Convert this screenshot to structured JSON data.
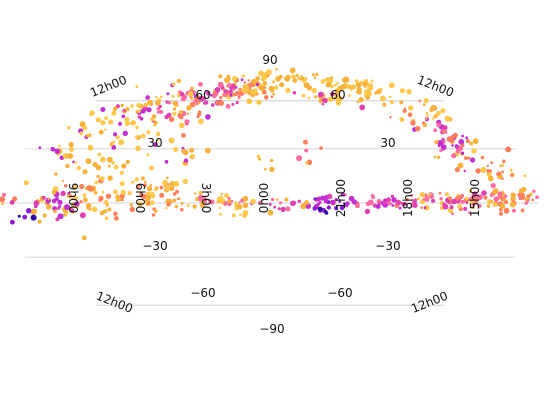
{
  "chart_data": {
    "type": "scatter",
    "projection": "mollweide-sky-map",
    "title": "",
    "grid": true,
    "colors": [
      "#ffc84a",
      "#f8b23a",
      "#ff7f5a",
      "#ff6aa0",
      "#e040b0",
      "#c22ecf",
      "#8a18d8",
      "#2b0aa8"
    ],
    "lat_ticks": [
      {
        "value": 90,
        "label": "90"
      },
      {
        "value": 60,
        "label": "60"
      },
      {
        "value": 30,
        "label": "30"
      },
      {
        "value": -30,
        "label": "−30"
      },
      {
        "value": -60,
        "label": "−60"
      },
      {
        "value": -90,
        "label": "−90"
      }
    ],
    "lon_ticks": [
      "9h00",
      "6h00",
      "3h00",
      "0h00",
      "21h00",
      "18h00",
      "15h00",
      "12h00"
    ],
    "clusters": [
      {
        "lon": 160,
        "lat": 2,
        "n": 60,
        "slon": 14,
        "slat": 3,
        "c": [
          1,
          2,
          3
        ]
      },
      {
        "lon": 120,
        "lat": 1,
        "n": 60,
        "slon": 16,
        "slat": 3,
        "c": [
          2,
          3,
          4,
          0
        ]
      },
      {
        "lon": 80,
        "lat": 0,
        "n": 40,
        "slon": 14,
        "slat": 2,
        "c": [
          3,
          4,
          5
        ]
      },
      {
        "lon": 40,
        "lat": 0,
        "n": 25,
        "slon": 10,
        "slat": 2,
        "c": [
          4,
          5,
          6
        ]
      },
      {
        "lon": 5,
        "lat": 0,
        "n": 20,
        "slon": 12,
        "slat": 2,
        "c": [
          1,
          3,
          4
        ]
      },
      {
        "lon": -40,
        "lat": 1,
        "n": 30,
        "slon": 12,
        "slat": 2,
        "c": [
          0,
          1,
          3
        ]
      },
      {
        "lon": -80,
        "lat": 4,
        "n": 55,
        "slon": 14,
        "slat": 5,
        "c": [
          0,
          1,
          2
        ]
      },
      {
        "lon": -120,
        "lat": 5,
        "n": 60,
        "slon": 16,
        "slat": 6,
        "c": [
          0,
          1,
          2
        ]
      },
      {
        "lon": -150,
        "lat": 0,
        "n": 35,
        "slon": 10,
        "slat": 4,
        "c": [
          1,
          4,
          5
        ]
      },
      {
        "lon": 155,
        "lat": 18,
        "n": 30,
        "slon": 12,
        "slat": 8,
        "c": [
          0,
          1,
          2
        ]
      },
      {
        "lon": 135,
        "lat": 35,
        "n": 45,
        "slon": 12,
        "slat": 6,
        "c": [
          1,
          2,
          3,
          4,
          5
        ]
      },
      {
        "lon": 140,
        "lat": 55,
        "n": 30,
        "slon": 14,
        "slat": 5,
        "c": [
          0,
          1,
          2
        ]
      },
      {
        "lon": 110,
        "lat": 70,
        "n": 60,
        "slon": 30,
        "slat": 5,
        "c": [
          0,
          1
        ]
      },
      {
        "lon": 60,
        "lat": 62,
        "n": 25,
        "slon": 14,
        "slat": 3,
        "c": [
          0,
          1,
          4
        ]
      },
      {
        "lon": -25,
        "lat": 68,
        "n": 45,
        "slon": 16,
        "slat": 4,
        "c": [
          0,
          1,
          2
        ]
      },
      {
        "lon": -60,
        "lat": 63,
        "n": 70,
        "slon": 16,
        "slat": 8,
        "c": [
          2,
          3,
          4,
          5
        ]
      },
      {
        "lon": -95,
        "lat": 55,
        "n": 50,
        "slon": 14,
        "slat": 8,
        "c": [
          0,
          1,
          3,
          4
        ]
      },
      {
        "lon": -130,
        "lat": 50,
        "n": 40,
        "slon": 14,
        "slat": 8,
        "c": [
          0,
          1,
          5
        ]
      },
      {
        "lon": -115,
        "lat": 25,
        "n": 25,
        "slon": 12,
        "slat": 8,
        "c": [
          0,
          1
        ]
      },
      {
        "lon": -70,
        "lat": 28,
        "n": 15,
        "slon": 14,
        "slat": 6,
        "c": [
          0,
          1,
          5
        ]
      },
      {
        "lon": -145,
        "lat": 30,
        "n": 25,
        "slon": 10,
        "slat": 10,
        "c": [
          0,
          1,
          5
        ]
      },
      {
        "lon": 10,
        "lat": 78,
        "n": 35,
        "slon": 60,
        "slat": 4,
        "c": [
          0,
          1
        ]
      },
      {
        "lon": 30,
        "lat": 25,
        "n": 5,
        "slon": 8,
        "slat": 3,
        "c": [
          2,
          3
        ]
      },
      {
        "lon": 0,
        "lat": 20,
        "n": 6,
        "slon": 10,
        "slat": 6,
        "c": [
          0,
          1
        ]
      },
      {
        "lon": -20,
        "lat": -5,
        "n": 10,
        "slon": 10,
        "slat": 4,
        "c": [
          1,
          0
        ]
      },
      {
        "lon": 45,
        "lat": -3,
        "n": 6,
        "slon": 5,
        "slat": 2,
        "c": [
          7,
          6
        ]
      },
      {
        "lon": -170,
        "lat": -8,
        "n": 5,
        "slon": 5,
        "slat": 2,
        "c": [
          6,
          7
        ]
      }
    ]
  }
}
